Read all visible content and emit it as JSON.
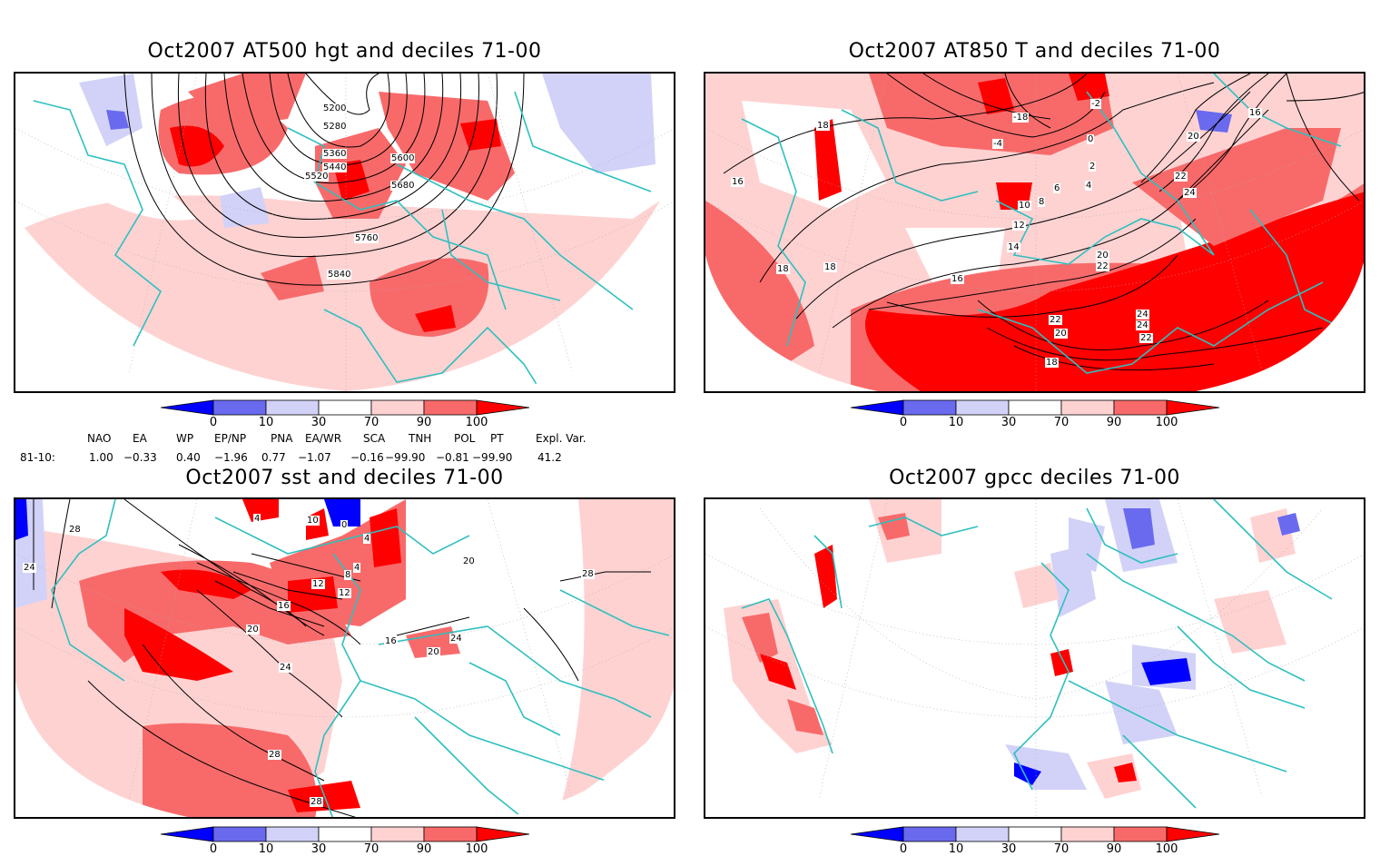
{
  "panels": [
    {
      "title": "Oct2007 AT500 hgt and deciles 71-00",
      "contours": [
        "5200",
        "5280",
        "5360",
        "5440",
        "5520",
        "5600",
        "5680",
        "5760",
        "5840"
      ]
    },
    {
      "title": "Oct2007 AT850 T and deciles 71-00",
      "contours": [
        "18",
        "16",
        "18",
        "16",
        "18",
        "14",
        "12",
        "10",
        "8",
        "6",
        "4",
        "2",
        "0",
        "-2",
        "-4",
        "-18",
        "20",
        "22",
        "24",
        "22",
        "20",
        "24",
        "22",
        "20",
        "24",
        "22",
        "18",
        "16"
      ]
    },
    {
      "title": "Oct2007 sst and deciles 71-00",
      "contours": [
        "28",
        "24",
        "4",
        "10",
        "0",
        "4",
        "4",
        "8",
        "12",
        "16",
        "20",
        "24",
        "28",
        "28",
        "24",
        "20",
        "16",
        "20",
        "12",
        "28"
      ]
    },
    {
      "title": "Oct2007 gpcc deciles 71-00",
      "contours": []
    }
  ],
  "colorbar": {
    "ticks": [
      "0",
      "10",
      "30",
      "70",
      "90",
      "100"
    ],
    "colors": [
      "#0000ff",
      "#6a6aef",
      "#d2d2f8",
      "#ffffff",
      "#ffd2d2",
      "#f86a6a",
      "#ff0000"
    ]
  },
  "indices": {
    "headers": [
      "NAO",
      "EA",
      "WP",
      "EP/NP",
      "PNA",
      "EA/WR",
      "SCA",
      "TNH",
      "POL",
      "PT",
      "Expl. Var."
    ],
    "row_label": "81-10:",
    "values": [
      "1.00",
      "−0.33",
      "0.40",
      "−1.96",
      "0.77",
      "−1.07",
      "−0.16",
      "−99.90",
      "−0.81",
      "−99.90",
      "41.2"
    ]
  },
  "colors": {
    "coast": "#2fbfbf",
    "contour": "#000000",
    "grid": "#aaaaaa"
  }
}
